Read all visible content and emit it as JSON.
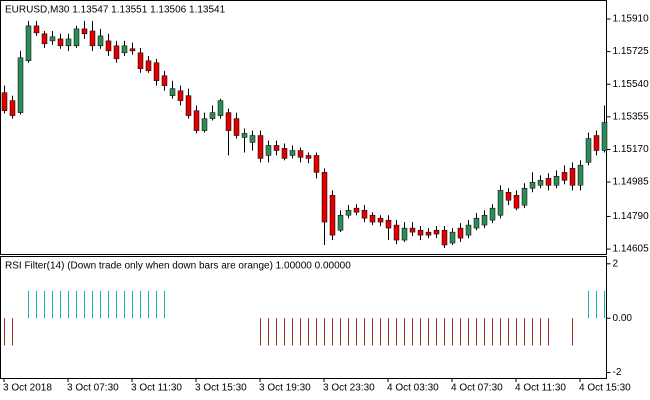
{
  "chart_data": [
    {
      "type": "candlestick",
      "title": "EURUSD,M30  1.13547 1.13551 1.13506 1.13541",
      "categories": [
        "3 Oct 2018",
        null,
        null,
        null,
        null,
        null,
        null,
        null,
        "3 Oct 07:30",
        null,
        null,
        null,
        null,
        null,
        null,
        null,
        "3 Oct 11:30",
        null,
        null,
        null,
        null,
        null,
        null,
        null,
        "3 Oct 15:30",
        null,
        null,
        null,
        null,
        null,
        null,
        null,
        "3 Oct 19:30",
        null,
        null,
        null,
        null,
        null,
        null,
        null,
        "3 Oct 23:30",
        null,
        null,
        null,
        null,
        null,
        null,
        null,
        "4 Oct 03:30",
        null,
        null,
        null,
        null,
        null,
        null,
        null,
        "4 Oct 07:30",
        null,
        null,
        null,
        null,
        null,
        null,
        null,
        "4 Oct 11:30",
        null,
        null,
        null,
        null,
        null,
        null,
        null,
        "4 Oct 15:30",
        null,
        null,
        null
      ],
      "open": [
        1.15492,
        1.15447,
        1.15379,
        1.15673,
        1.15871,
        1.15826,
        1.15786,
        1.15797,
        1.15758,
        1.15758,
        1.15854,
        1.15842,
        1.15758,
        1.15786,
        1.15758,
        1.15718,
        1.15741,
        1.15718,
        1.15673,
        1.15662,
        1.15588,
        1.15475,
        1.15503,
        1.15475,
        1.1539,
        1.15277,
        1.15345,
        1.15362,
        1.15379,
        1.15345,
        1.15238,
        1.1521,
        1.15249,
        1.15136,
        1.15193,
        1.15176,
        1.15136,
        1.15164,
        1.15136,
        1.15136,
        1.1504,
        1.1491,
        1.14712,
        1.14797,
        1.14837,
        1.14825,
        1.14797,
        1.1478,
        1.14769,
        1.14741,
        1.14656,
        1.14724,
        1.14712,
        1.14701,
        1.14712,
        1.14712,
        1.14639,
        1.14724,
        1.14684,
        1.14724,
        1.14741,
        1.14769,
        1.14797,
        1.14927,
        1.1491,
        1.14854,
        1.1495,
        1.14967,
        1.15006,
        1.14967,
        1.1504,
        1.15063,
        1.14967,
        1.15097,
        1.15249,
        1.15164
      ],
      "high": [
        1.15532,
        1.15475,
        1.15729,
        1.15899,
        1.15899,
        1.15842,
        1.15842,
        1.15826,
        1.15826,
        1.15871,
        1.15899,
        1.15899,
        1.15854,
        1.15826,
        1.15786,
        1.15786,
        1.15775,
        1.15746,
        1.15701,
        1.15684,
        1.15616,
        1.1556,
        1.15532,
        1.15515,
        1.15419,
        1.15379,
        1.15419,
        1.15458,
        1.15402,
        1.15379,
        1.15289,
        1.15277,
        1.15277,
        1.15221,
        1.15221,
        1.15204,
        1.15193,
        1.15181,
        1.15153,
        1.15153,
        1.15063,
        1.14938,
        1.14825,
        1.14854,
        1.14859,
        1.14854,
        1.14814,
        1.14797,
        1.14797,
        1.14769,
        1.14758,
        1.14758,
        1.14735,
        1.14724,
        1.14735,
        1.14735,
        1.14724,
        1.14752,
        1.14769,
        1.14809,
        1.14825,
        1.14859,
        1.14967,
        1.1495,
        1.14938,
        1.14978,
        1.1504,
        1.15023,
        1.15035,
        1.15051,
        1.1508,
        1.15097,
        1.15108,
        1.15266,
        1.15277,
        1.15419
      ],
      "low": [
        1.15374,
        1.15345,
        1.15368,
        1.15662,
        1.15814,
        1.15746,
        1.15763,
        1.15741,
        1.15729,
        1.15746,
        1.15797,
        1.15729,
        1.15741,
        1.15701,
        1.15662,
        1.15701,
        1.15707,
        1.15605,
        1.15605,
        1.15532,
        1.15503,
        1.15458,
        1.15419,
        1.15345,
        1.15261,
        1.15266,
        1.15334,
        1.15345,
        1.15136,
        1.15232,
        1.15153,
        1.15164,
        1.15097,
        1.15097,
        1.15136,
        1.15108,
        1.15119,
        1.15097,
        1.15091,
        1.15006,
        1.14628,
        1.14656,
        1.14701,
        1.1478,
        1.14797,
        1.14758,
        1.14741,
        1.14735,
        1.14656,
        1.14633,
        1.14645,
        1.14679,
        1.14656,
        1.14667,
        1.14667,
        1.14611,
        1.14628,
        1.14645,
        1.14667,
        1.14712,
        1.14724,
        1.14752,
        1.1478,
        1.14854,
        1.14825,
        1.14837,
        1.14927,
        1.1495,
        1.14938,
        1.1495,
        1.14972,
        1.14938,
        1.14938,
        1.1508,
        1.15136,
        1.15153
      ],
      "close": [
        1.1539,
        1.15362,
        1.1569,
        1.15871,
        1.15831,
        1.15769,
        1.15809,
        1.15758,
        1.15797,
        1.15854,
        1.15826,
        1.15758,
        1.15814,
        1.15729,
        1.15684,
        1.15758,
        1.15729,
        1.15628,
        1.15616,
        1.1556,
        1.15532,
        1.15515,
        1.15447,
        1.15362,
        1.15277,
        1.15345,
        1.15379,
        1.15447,
        1.15277,
        1.15249,
        1.15261,
        1.15249,
        1.15119,
        1.15193,
        1.15164,
        1.15119,
        1.15164,
        1.15125,
        1.15119,
        1.1504,
        1.14758,
        1.14684,
        1.14797,
        1.14825,
        1.14814,
        1.1478,
        1.14758,
        1.14758,
        1.14724,
        1.14656,
        1.14724,
        1.14701,
        1.14684,
        1.14684,
        1.1469,
        1.14628,
        1.14701,
        1.14667,
        1.14741,
        1.1478,
        1.14797,
        1.14837,
        1.14938,
        1.14882,
        1.14837,
        1.1495,
        1.14984,
        1.14995,
        1.14967,
        1.15018,
        1.14995,
        1.14967,
        1.1508,
        1.15232,
        1.15164,
        1.15323
      ],
      "ylim": [
        1.14577,
        1.16012
      ],
      "yticks": [
        {
          "value": 1.1591,
          "label": "1.15910"
        },
        1.15725,
        {
          "value": 1.1554,
          "label": "1.15540"
        },
        1.15355,
        {
          "value": 1.1517,
          "label": "1.15170"
        },
        1.14985,
        {
          "value": 1.1479,
          "label": "1.14790"
        },
        1.14605
      ],
      "up_color": "#2e8b57",
      "down_color": "#e00000",
      "wick_color": "#000000"
    },
    {
      "type": "bar",
      "title": "RSI Filter(14)  (Down trade only when down bars are orange) 1.00000 0.00000",
      "values": [
        -1,
        -1,
        0,
        1,
        1,
        1,
        1,
        1,
        1,
        1,
        1,
        1,
        1,
        1,
        1,
        1,
        1,
        1,
        1,
        1,
        1,
        0,
        0,
        0,
        0,
        0,
        0,
        0,
        0,
        0,
        0,
        0,
        -1,
        -1,
        -1,
        -1,
        -1,
        -1,
        -1,
        -1,
        -1,
        -1,
        -1,
        -1,
        -1,
        -1,
        -1,
        -1,
        -1,
        -1,
        -1,
        -1,
        -1,
        -1,
        -1,
        -1,
        -1,
        -1,
        -1,
        -1,
        -1,
        -1,
        -1,
        -1,
        -1,
        -1,
        -1,
        -1,
        -1,
        0,
        0,
        -1,
        0,
        1,
        1,
        1
      ],
      "ylim": [
        -2.2,
        2.25
      ],
      "yticks": [
        2,
        {
          "value": 0,
          "label": "0.00"
        },
        -2
      ],
      "up_color": "#20b2aa",
      "down_color": "#a52a2a"
    }
  ]
}
